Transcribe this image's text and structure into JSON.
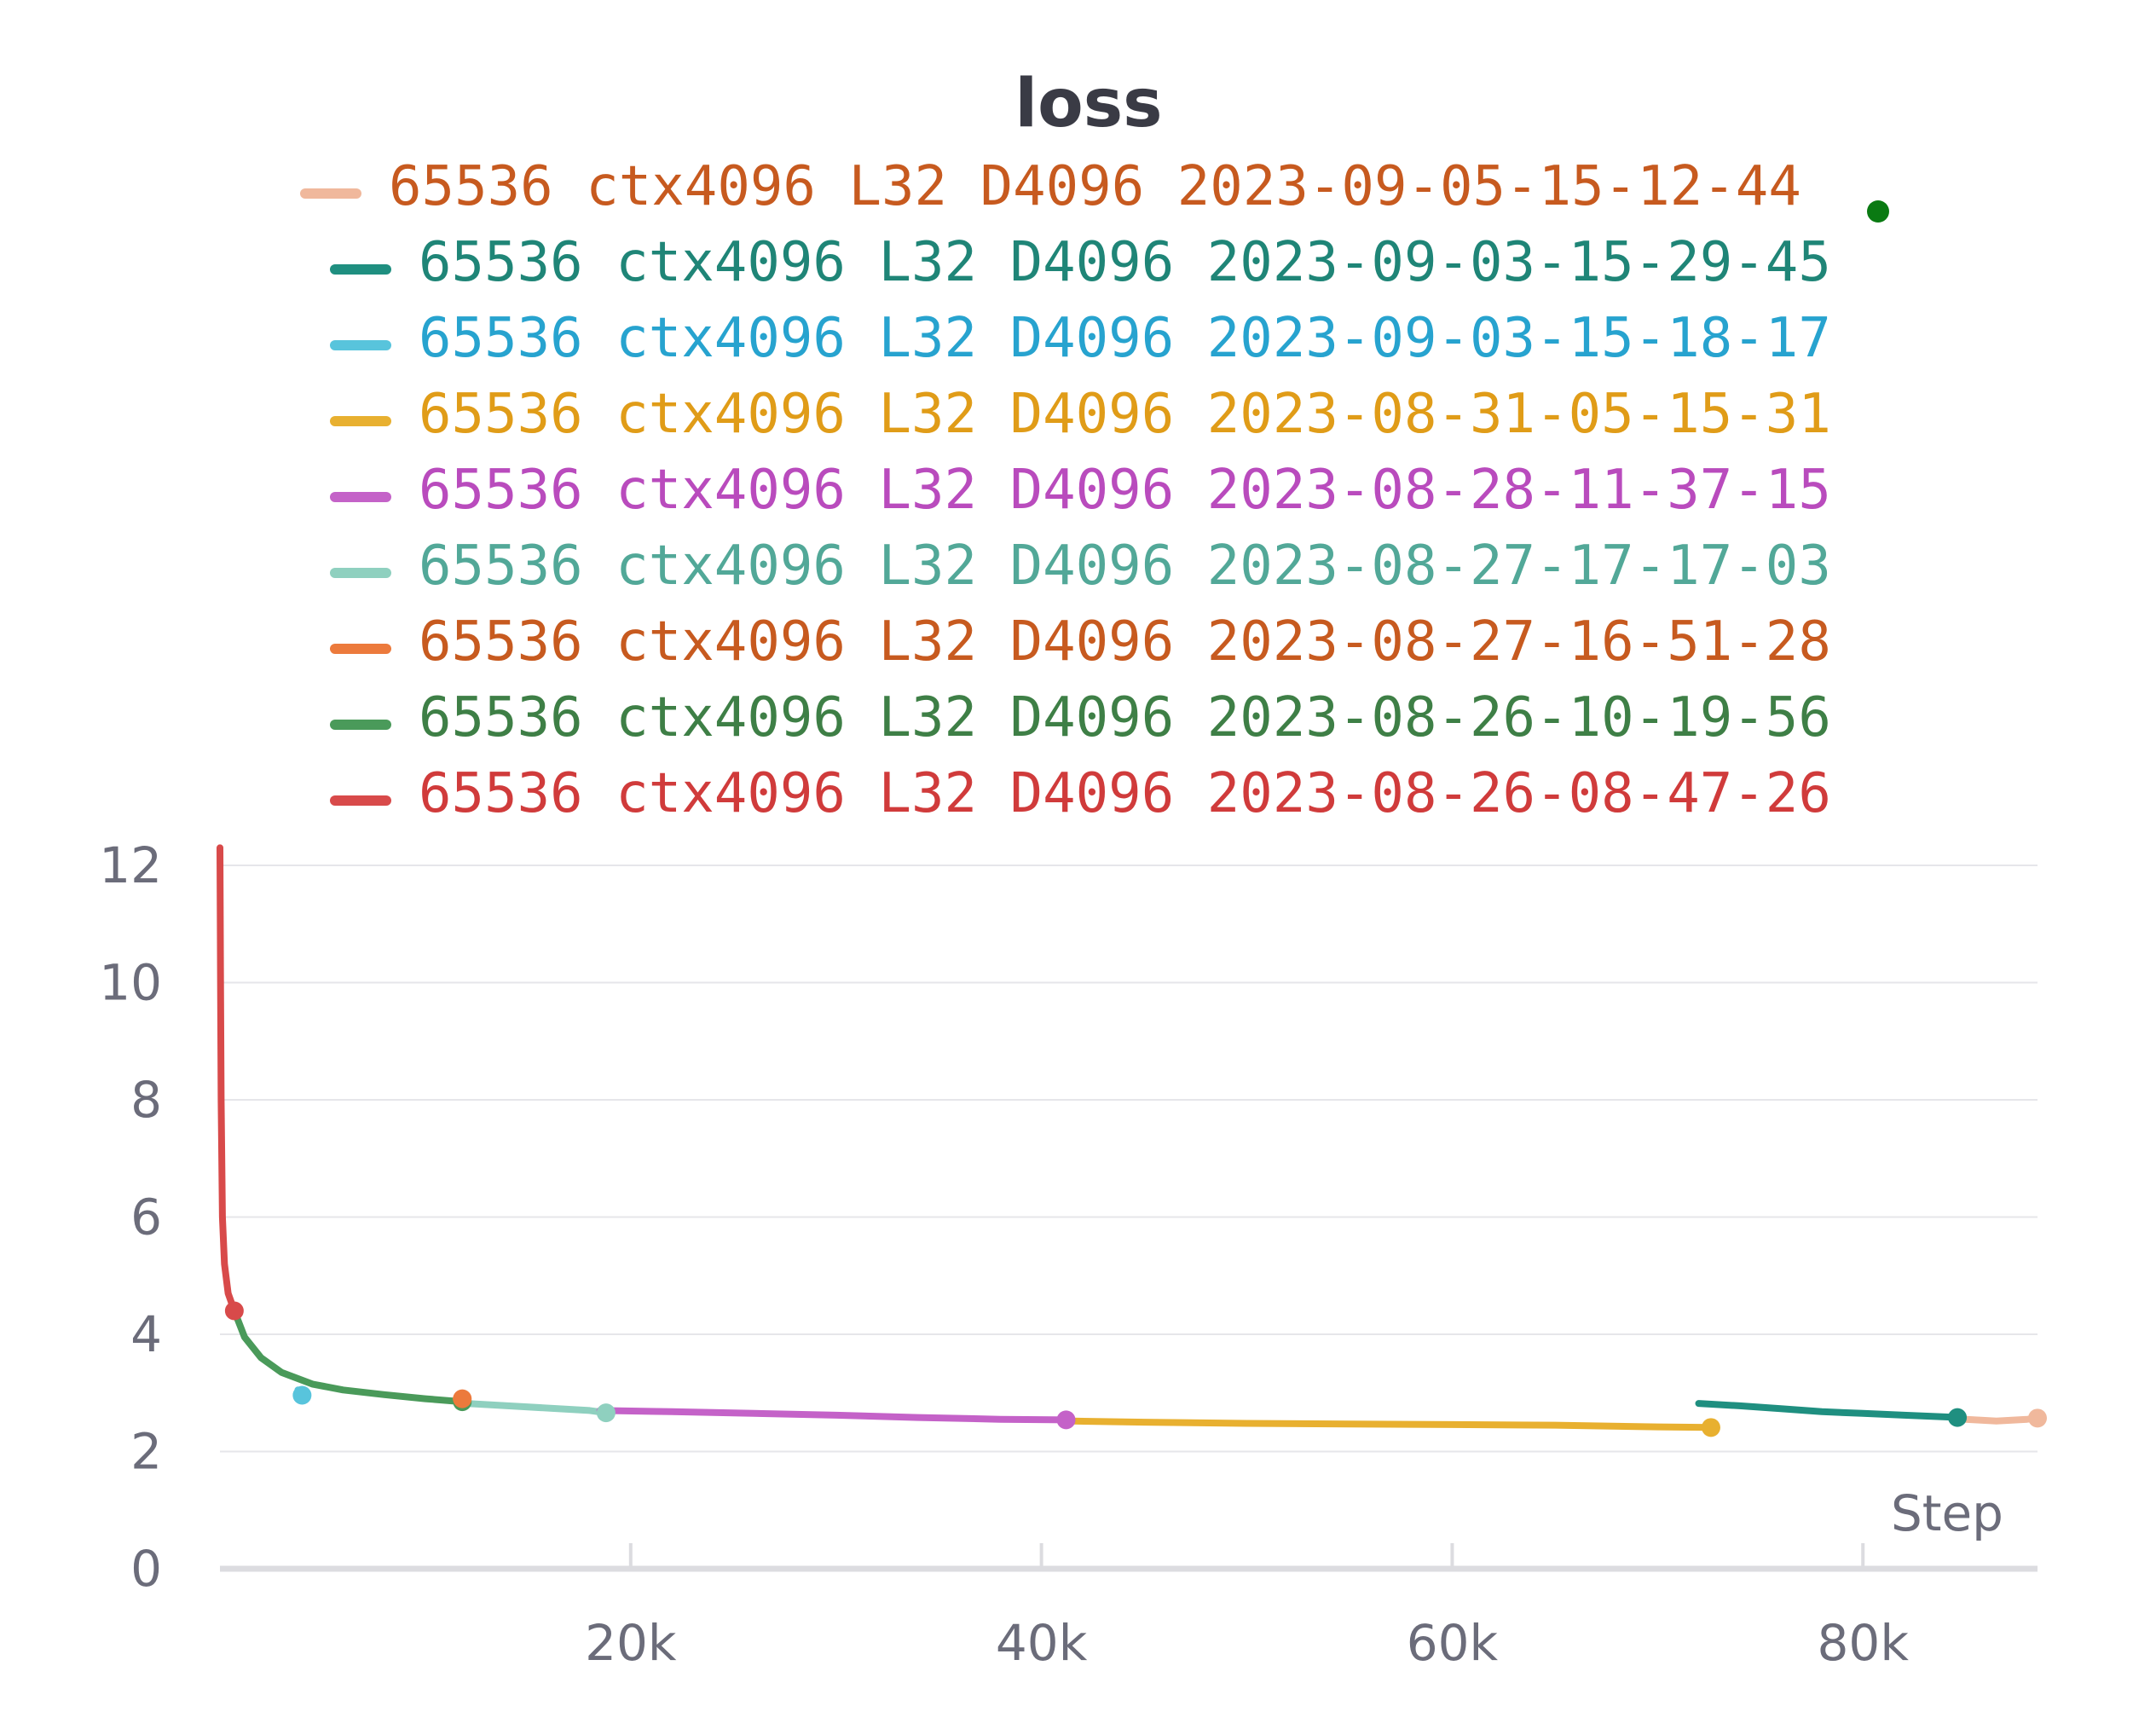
{
  "chart_data": {
    "type": "line",
    "title": "loss",
    "xlabel": "Step",
    "ylabel": "",
    "xlim": [
      0,
      88500
    ],
    "ylim": [
      0,
      12
    ],
    "grid": true,
    "legend_position": "top",
    "x_ticks": [
      {
        "value": 20000,
        "label": "20k"
      },
      {
        "value": 40000,
        "label": "40k"
      },
      {
        "value": 60000,
        "label": "60k"
      },
      {
        "value": 80000,
        "label": "80k"
      }
    ],
    "y_ticks": [
      {
        "value": 0,
        "label": "0"
      },
      {
        "value": 2,
        "label": "2"
      },
      {
        "value": 4,
        "label": "4"
      },
      {
        "value": 6,
        "label": "6"
      },
      {
        "value": 8,
        "label": "8"
      },
      {
        "value": 10,
        "label": "10"
      },
      {
        "value": 12,
        "label": "12"
      }
    ],
    "series": [
      {
        "name": "65536 ctx4096 L32 D4096 2023-09-05-15-12-44",
        "color": "#f0b89c",
        "text_color": "#c75a1f",
        "legend_marker": true,
        "points": [
          [
            85000,
            2.55
          ],
          [
            86500,
            2.52
          ],
          [
            88000,
            2.55
          ],
          [
            88500,
            2.57
          ]
        ]
      },
      {
        "name": "65536 ctx4096 L32 D4096 2023-09-03-15-29-45",
        "color": "#1f8f80",
        "text_color": "#1f8577",
        "points": [
          [
            72000,
            2.82
          ],
          [
            74000,
            2.78
          ],
          [
            76000,
            2.73
          ],
          [
            78000,
            2.68
          ],
          [
            80000,
            2.65
          ],
          [
            82000,
            2.62
          ],
          [
            84000,
            2.59
          ],
          [
            84600,
            2.58
          ]
        ]
      },
      {
        "name": "65536 ctx4096 L32 D4096 2023-09-03-15-18-17",
        "color": "#58c4dc",
        "text_color": "#27a3cf",
        "points": [
          [
            3800,
            3.05
          ],
          [
            4000,
            2.96
          ]
        ]
      },
      {
        "name": "65536 ctx4096 L32 D4096 2023-08-31-05-15-31",
        "color": "#e8b030",
        "text_color": "#e09c18",
        "points": [
          [
            41500,
            2.52
          ],
          [
            45000,
            2.5
          ],
          [
            50000,
            2.48
          ],
          [
            55000,
            2.47
          ],
          [
            60000,
            2.46
          ],
          [
            65000,
            2.45
          ],
          [
            70000,
            2.42
          ],
          [
            72600,
            2.41
          ]
        ]
      },
      {
        "name": "65536 ctx4096 L32 D4096 2023-08-28-11-37-15",
        "color": "#c462c8",
        "text_color": "#b94bbd",
        "points": [
          [
            18500,
            2.7
          ],
          [
            22000,
            2.68
          ],
          [
            26000,
            2.65
          ],
          [
            30000,
            2.62
          ],
          [
            34000,
            2.58
          ],
          [
            38000,
            2.55
          ],
          [
            41200,
            2.54
          ]
        ]
      },
      {
        "name": "65536 ctx4096 L32 D4096 2023-08-27-17-17-03",
        "color": "#8fd0bf",
        "text_color": "#52a898",
        "points": [
          [
            12000,
            2.82
          ],
          [
            14000,
            2.78
          ],
          [
            16000,
            2.74
          ],
          [
            18000,
            2.7
          ],
          [
            18800,
            2.66
          ]
        ]
      },
      {
        "name": "65536 ctx4096 L32 D4096 2023-08-27-16-51-28",
        "color": "#ec7a3c",
        "text_color": "#c75a1f",
        "points": [
          [
            11500,
            2.9
          ],
          [
            11800,
            2.9
          ]
        ]
      },
      {
        "name": "65536 ctx4096 L32 D4096 2023-08-26-10-19-56",
        "color": "#4a9a5a",
        "text_color": "#3e7f46",
        "points": [
          [
            700,
            4.4
          ],
          [
            1200,
            3.95
          ],
          [
            2000,
            3.6
          ],
          [
            3000,
            3.35
          ],
          [
            4500,
            3.15
          ],
          [
            6000,
            3.05
          ],
          [
            8000,
            2.97
          ],
          [
            10000,
            2.9
          ],
          [
            11800,
            2.85
          ]
        ]
      },
      {
        "name": "65536 ctx4096 L32 D4096 2023-08-26-08-47-26",
        "color": "#d84a4a",
        "text_color": "#d03b3b",
        "points": [
          [
            0,
            12.3
          ],
          [
            30,
            10
          ],
          [
            60,
            8
          ],
          [
            120,
            6
          ],
          [
            220,
            5.2
          ],
          [
            400,
            4.7
          ],
          [
            700,
            4.4
          ]
        ]
      }
    ]
  }
}
